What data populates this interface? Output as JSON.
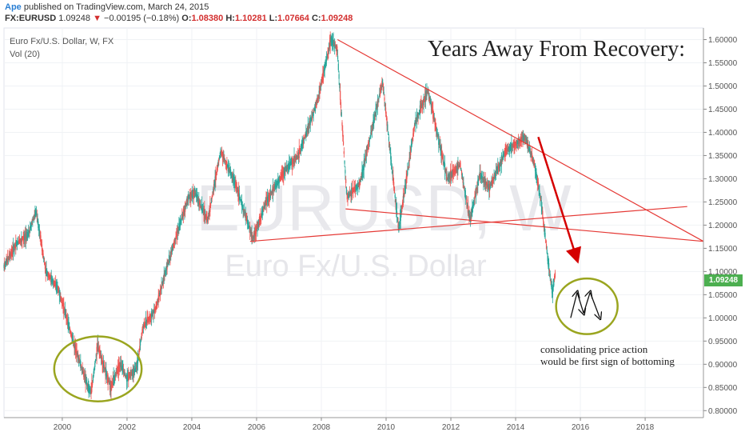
{
  "header": {
    "author": "Ape",
    "published": "published on TradingView.com, March 24, 2015",
    "symbol": "FX:EURUSD",
    "last": "1.09248",
    "change": "−0.00195 (−0.18%)",
    "open_label": "O:",
    "open": "1.08380",
    "high_label": "H:",
    "high": "1.10281",
    "low_label": "L:",
    "low": "1.07664",
    "close_label": "C:",
    "close": "1.09248"
  },
  "legend": {
    "series": "Euro Fx/U.S. Dollar, W, FX",
    "volume": "Vol (20)"
  },
  "watermark": {
    "symbol": "EURUSD, W",
    "description": "Euro Fx/U.S. Dollar"
  },
  "annotations": {
    "title": "Years Away From Recovery:",
    "note_line1": "consolidating price action",
    "note_line2": "would be first sign of bottoming"
  },
  "price_tag": "1.09248",
  "colors": {
    "up": "#26a69a",
    "down": "#ef5350",
    "trendline": "#e53935",
    "ellipse": "#9aa51f",
    "arrow": "#d50000",
    "price_tag": "#4caf50"
  },
  "chart_data": {
    "type": "candlestick",
    "title": "Years Away From Recovery:",
    "symbol": "FX:EURUSD",
    "timeframe": "W",
    "xlim": [
      1998.2,
      2019.8
    ],
    "ylim": [
      0.785,
      1.625
    ],
    "x_ticks": [
      "2000",
      "2002",
      "2004",
      "2006",
      "2008",
      "2010",
      "2012",
      "2014",
      "2016",
      "2018"
    ],
    "y_ticks": [
      "0.80000",
      "0.85000",
      "0.90000",
      "0.95000",
      "1.00000",
      "1.05000",
      "1.10000",
      "1.15000",
      "1.20000",
      "1.25000",
      "1.30000",
      "1.35000",
      "1.40000",
      "1.45000",
      "1.50000",
      "1.55000",
      "1.60000"
    ],
    "price_path": [
      [
        1998.2,
        1.11
      ],
      [
        1998.6,
        1.16
      ],
      [
        1998.95,
        1.18
      ],
      [
        1999.2,
        1.23
      ],
      [
        1999.5,
        1.1
      ],
      [
        1999.9,
        1.06
      ],
      [
        2000.3,
        0.96
      ],
      [
        2000.8,
        0.85
      ],
      [
        2000.9,
        0.84
      ],
      [
        2001.1,
        0.94
      ],
      [
        2001.5,
        0.85
      ],
      [
        2001.8,
        0.9
      ],
      [
        2002.0,
        0.87
      ],
      [
        2002.3,
        0.89
      ],
      [
        2002.5,
        0.98
      ],
      [
        2002.9,
        1.02
      ],
      [
        2003.2,
        1.1
      ],
      [
        2003.5,
        1.17
      ],
      [
        2003.9,
        1.26
      ],
      [
        2004.1,
        1.27
      ],
      [
        2004.5,
        1.21
      ],
      [
        2004.9,
        1.36
      ],
      [
        2005.3,
        1.3
      ],
      [
        2005.9,
        1.17
      ],
      [
        2006.3,
        1.25
      ],
      [
        2006.9,
        1.32
      ],
      [
        2007.3,
        1.35
      ],
      [
        2007.9,
        1.47
      ],
      [
        2008.3,
        1.6
      ],
      [
        2008.5,
        1.58
      ],
      [
        2008.8,
        1.26
      ],
      [
        2009.2,
        1.29
      ],
      [
        2009.9,
        1.51
      ],
      [
        2010.4,
        1.19
      ],
      [
        2010.9,
        1.42
      ],
      [
        2011.3,
        1.49
      ],
      [
        2011.9,
        1.3
      ],
      [
        2012.3,
        1.33
      ],
      [
        2012.6,
        1.21
      ],
      [
        2012.9,
        1.31
      ],
      [
        2013.2,
        1.28
      ],
      [
        2013.7,
        1.36
      ],
      [
        2014.3,
        1.39
      ],
      [
        2014.6,
        1.33
      ],
      [
        2014.8,
        1.25
      ],
      [
        2015.0,
        1.13
      ],
      [
        2015.15,
        1.05
      ],
      [
        2015.22,
        1.0925
      ]
    ],
    "trendlines": [
      {
        "from": [
          2008.5,
          1.6
        ],
        "to": [
          2019.8,
          1.165
        ]
      },
      {
        "from": [
          2008.75,
          1.235
        ],
        "to": [
          2019.8,
          1.165
        ]
      },
      {
        "from": [
          2005.8,
          1.165
        ],
        "to": [
          2019.3,
          1.24
        ]
      }
    ],
    "arrow": {
      "from": [
        2014.7,
        1.39
      ],
      "to": [
        2015.9,
        1.125
      ]
    },
    "ellipses": [
      {
        "cx": 2001.1,
        "cy": 0.89,
        "rx": 1.35,
        "ry": 0.07
      },
      {
        "cx": 2016.2,
        "cy": 1.025,
        "rx": 0.95,
        "ry": 0.06
      }
    ],
    "zigzag": [
      [
        2015.7,
        1.0
      ],
      [
        2015.9,
        1.055
      ],
      [
        2016.1,
        1.01
      ],
      [
        2016.3,
        1.055
      ],
      [
        2016.6,
        1.0
      ]
    ]
  }
}
